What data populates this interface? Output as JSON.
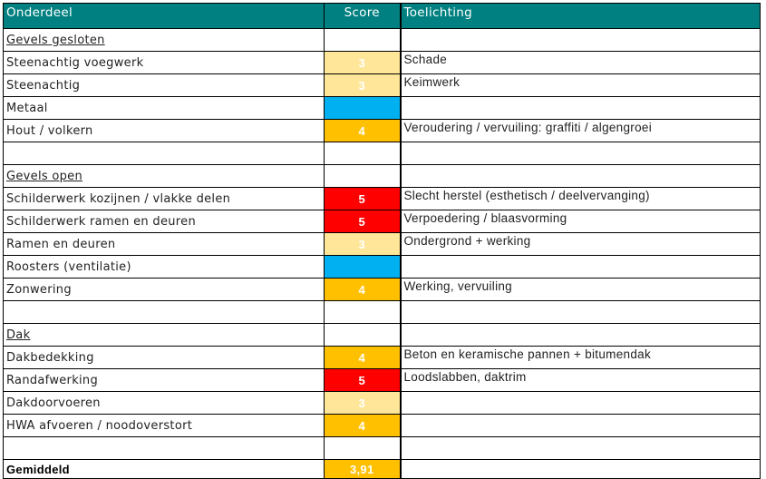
{
  "header": {
    "onderdeel": "Onderdeel",
    "score": "Score",
    "toelichting": "Toelichting"
  },
  "colors": {
    "header": "#008080",
    "score_3": "#FFE699",
    "score_4": "#FFC000",
    "score_5": "#FF0000",
    "no_score": "#00B0F0"
  },
  "rows": [
    {
      "type": "section",
      "label": "Gevels gesloten",
      "score": "",
      "note": ""
    },
    {
      "type": "item",
      "label": "Steenachtig voegwerk",
      "score": "3",
      "note": "Schade"
    },
    {
      "type": "item",
      "label": "Steenachtig",
      "score": "3",
      "note": "Keimwerk"
    },
    {
      "type": "item",
      "label": "Metaal",
      "score": "",
      "color": "none",
      "note": ""
    },
    {
      "type": "item",
      "label": "Hout / volkern",
      "score": "4",
      "note": "Veroudering / vervuiling: graffiti / algengroei"
    },
    {
      "type": "blank",
      "label": "",
      "score": "",
      "note": ""
    },
    {
      "type": "section",
      "label": "Gevels open",
      "score": "",
      "note": ""
    },
    {
      "type": "item",
      "label": "Schilderwerk kozijnen / vlakke delen",
      "score": "5",
      "note": "Slecht herstel (esthetisch / deelvervanging)"
    },
    {
      "type": "item",
      "label": "Schilderwerk ramen en deuren",
      "score": "5",
      "note": "Verpoedering / blaasvorming"
    },
    {
      "type": "item",
      "label": "Ramen en deuren",
      "score": "3",
      "note": "Ondergrond + werking"
    },
    {
      "type": "item",
      "label": "Roosters (ventilatie)",
      "score": "",
      "color": "none",
      "note": ""
    },
    {
      "type": "item",
      "label": "Zonwering",
      "score": "4",
      "note": "Werking, vervuiling"
    },
    {
      "type": "blank",
      "label": "",
      "score": "",
      "note": ""
    },
    {
      "type": "section",
      "label": "Dak",
      "score": "",
      "note": ""
    },
    {
      "type": "item",
      "label": "Dakbedekking",
      "score": "4",
      "note": "Beton en keramische pannen + bitumendak"
    },
    {
      "type": "item",
      "label": "Randafwerking",
      "score": "5",
      "note": "Loodslabben, daktrim"
    },
    {
      "type": "item",
      "label": "Dakdoorvoeren",
      "score": "3",
      "note": ""
    },
    {
      "type": "item",
      "label": "HWA afvoeren / noodoverstort",
      "score": "4",
      "note": ""
    },
    {
      "type": "blank",
      "label": "",
      "score": "",
      "note": ""
    }
  ],
  "total": {
    "label": "Gemiddeld",
    "score": "3,91"
  }
}
